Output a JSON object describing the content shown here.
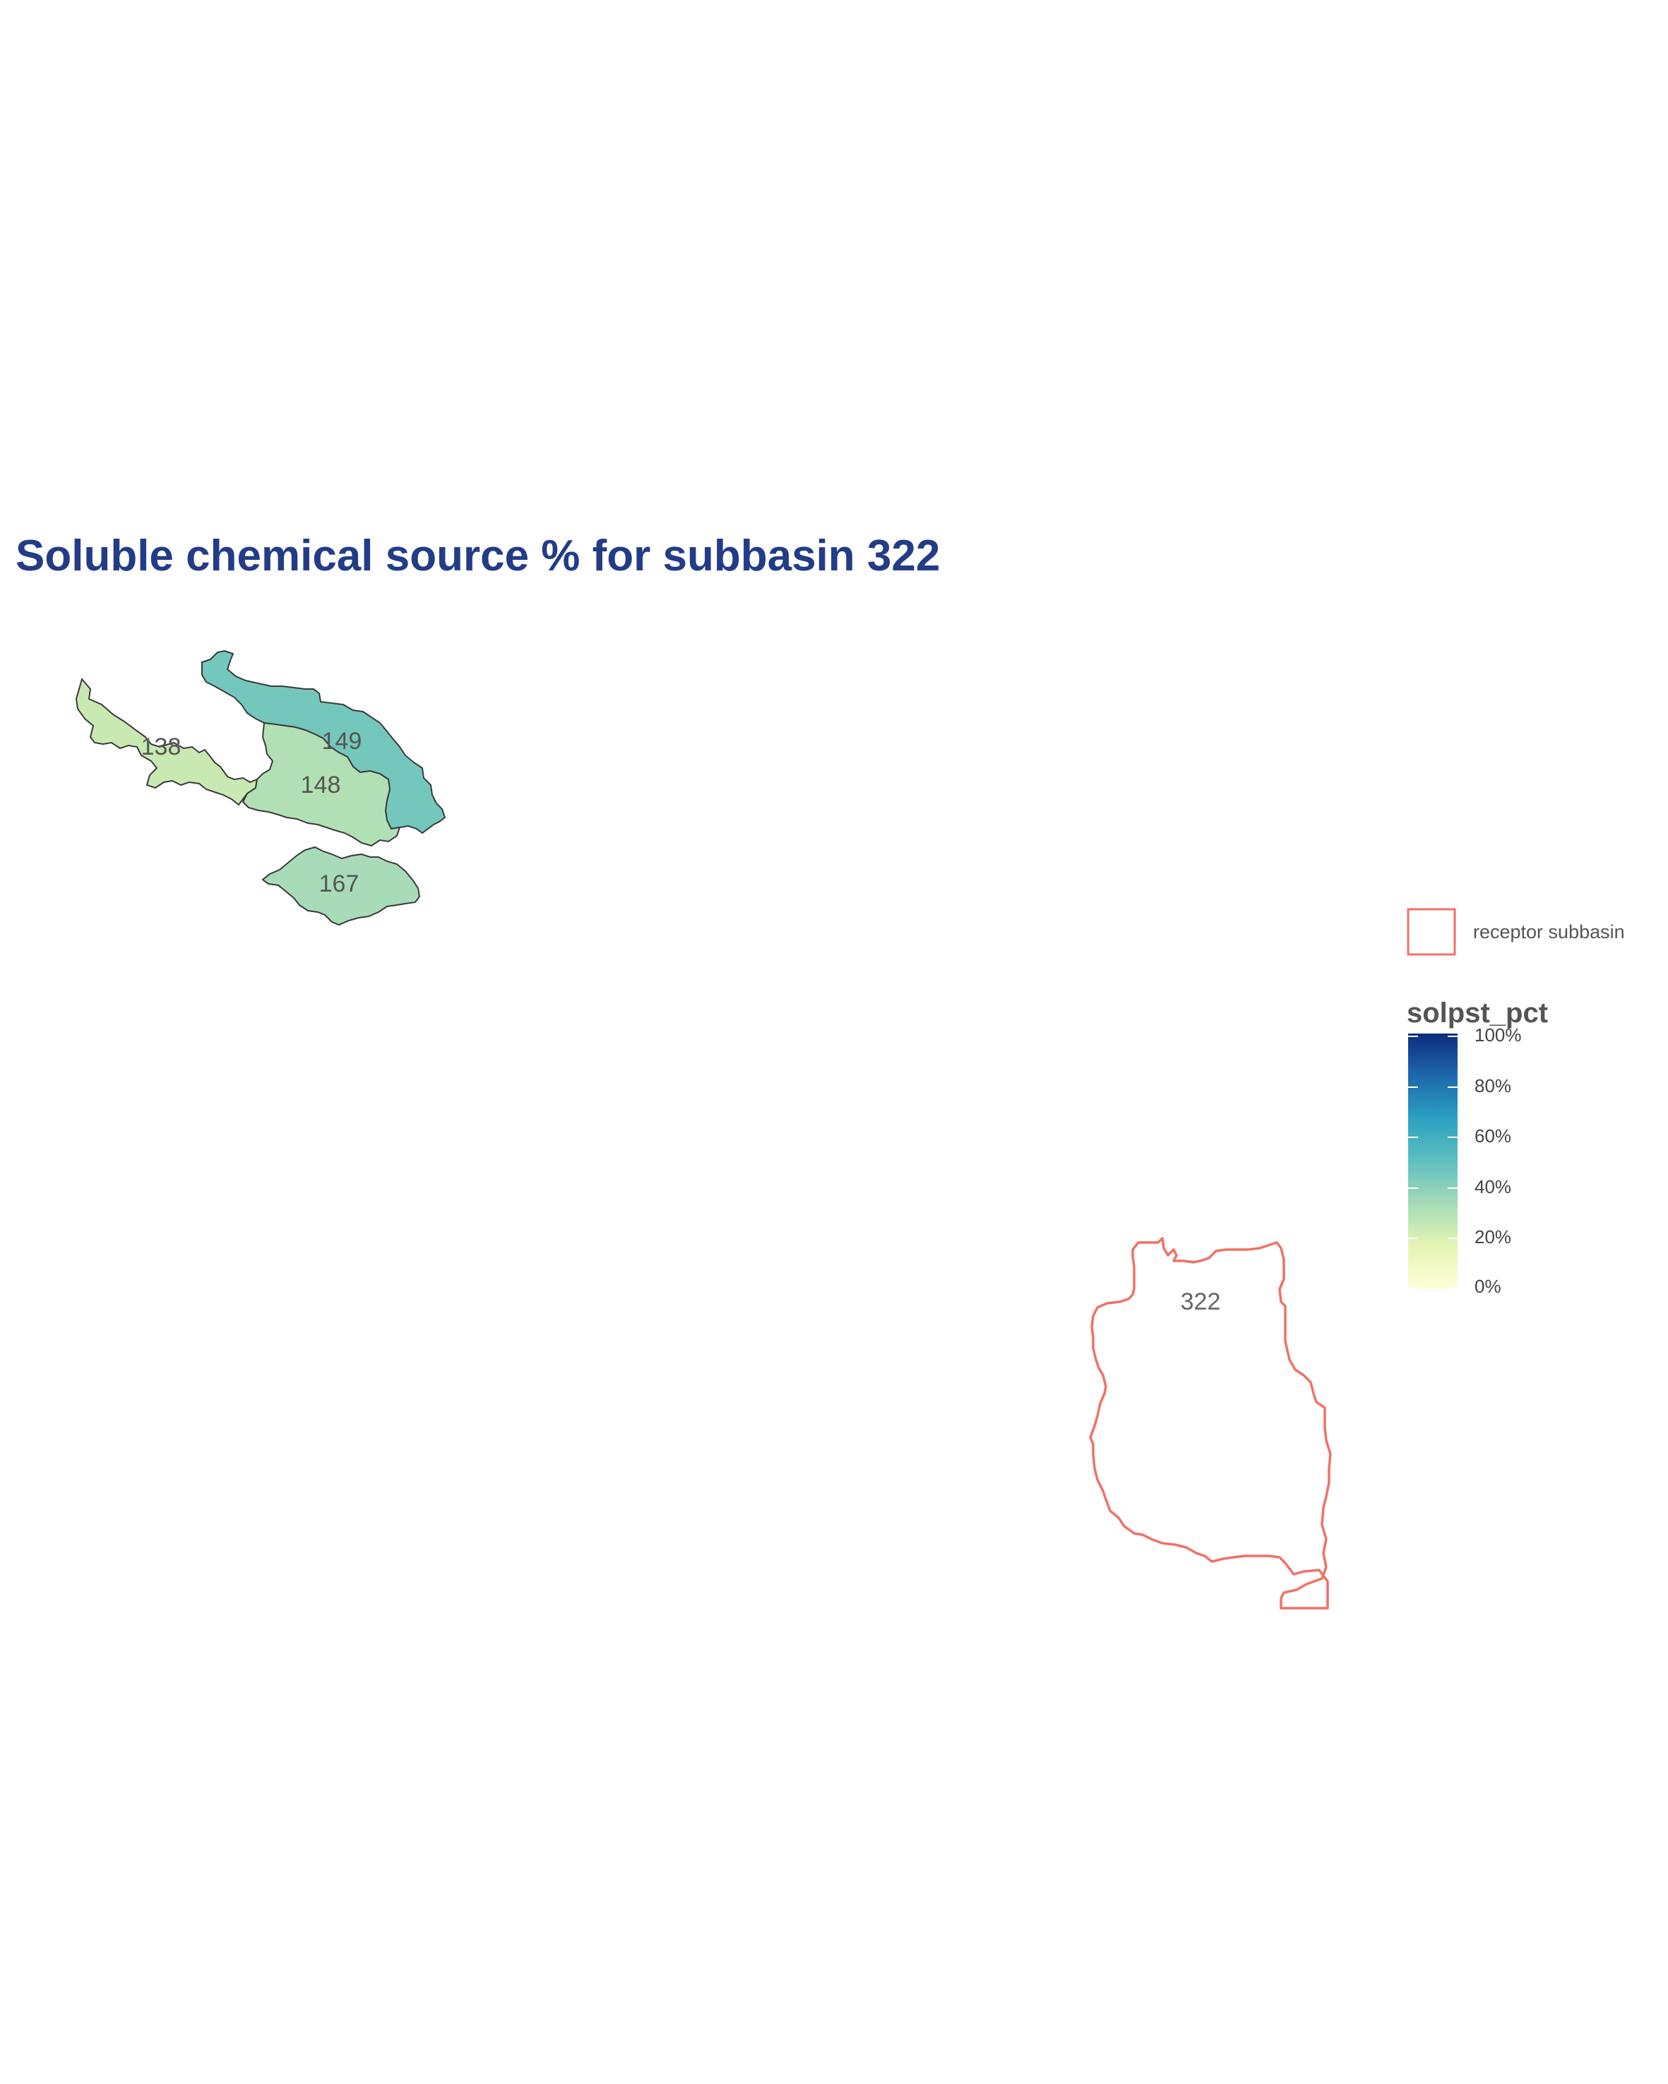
{
  "title": "Soluble chemical source % for subbasin 322",
  "colors": {
    "title": "#233c87",
    "receptor_outline": "#f07167",
    "source_outline": "#3a3a3a",
    "scale_low": "#ffffd9",
    "scale_high": "#0d2c7d"
  },
  "source_subbasins": [
    {
      "id": "138",
      "label": "138",
      "solpst_pct": 22,
      "fill": "#c9e9b3"
    },
    {
      "id": "148",
      "label": "148",
      "solpst_pct": 28,
      "fill": "#b2e0b5"
    },
    {
      "id": "149",
      "label": "149",
      "solpst_pct": 38,
      "fill": "#74c7bc"
    },
    {
      "id": "167",
      "label": "167",
      "solpst_pct": 30,
      "fill": "#a8dcb8"
    }
  ],
  "receptor": {
    "id": "322",
    "label": "322"
  },
  "legend": {
    "receptor_label": "receptor subbasin",
    "scale_title": "solpst_pct",
    "ticks": [
      "100%",
      "80%",
      "60%",
      "40%",
      "20%",
      "0%"
    ],
    "gradient_stops": [
      "#0d2c7d",
      "#1d6aad",
      "#2aa0c1",
      "#5fc0c0",
      "#a8dcb6",
      "#e4f4b4",
      "#ffffd9"
    ]
  }
}
